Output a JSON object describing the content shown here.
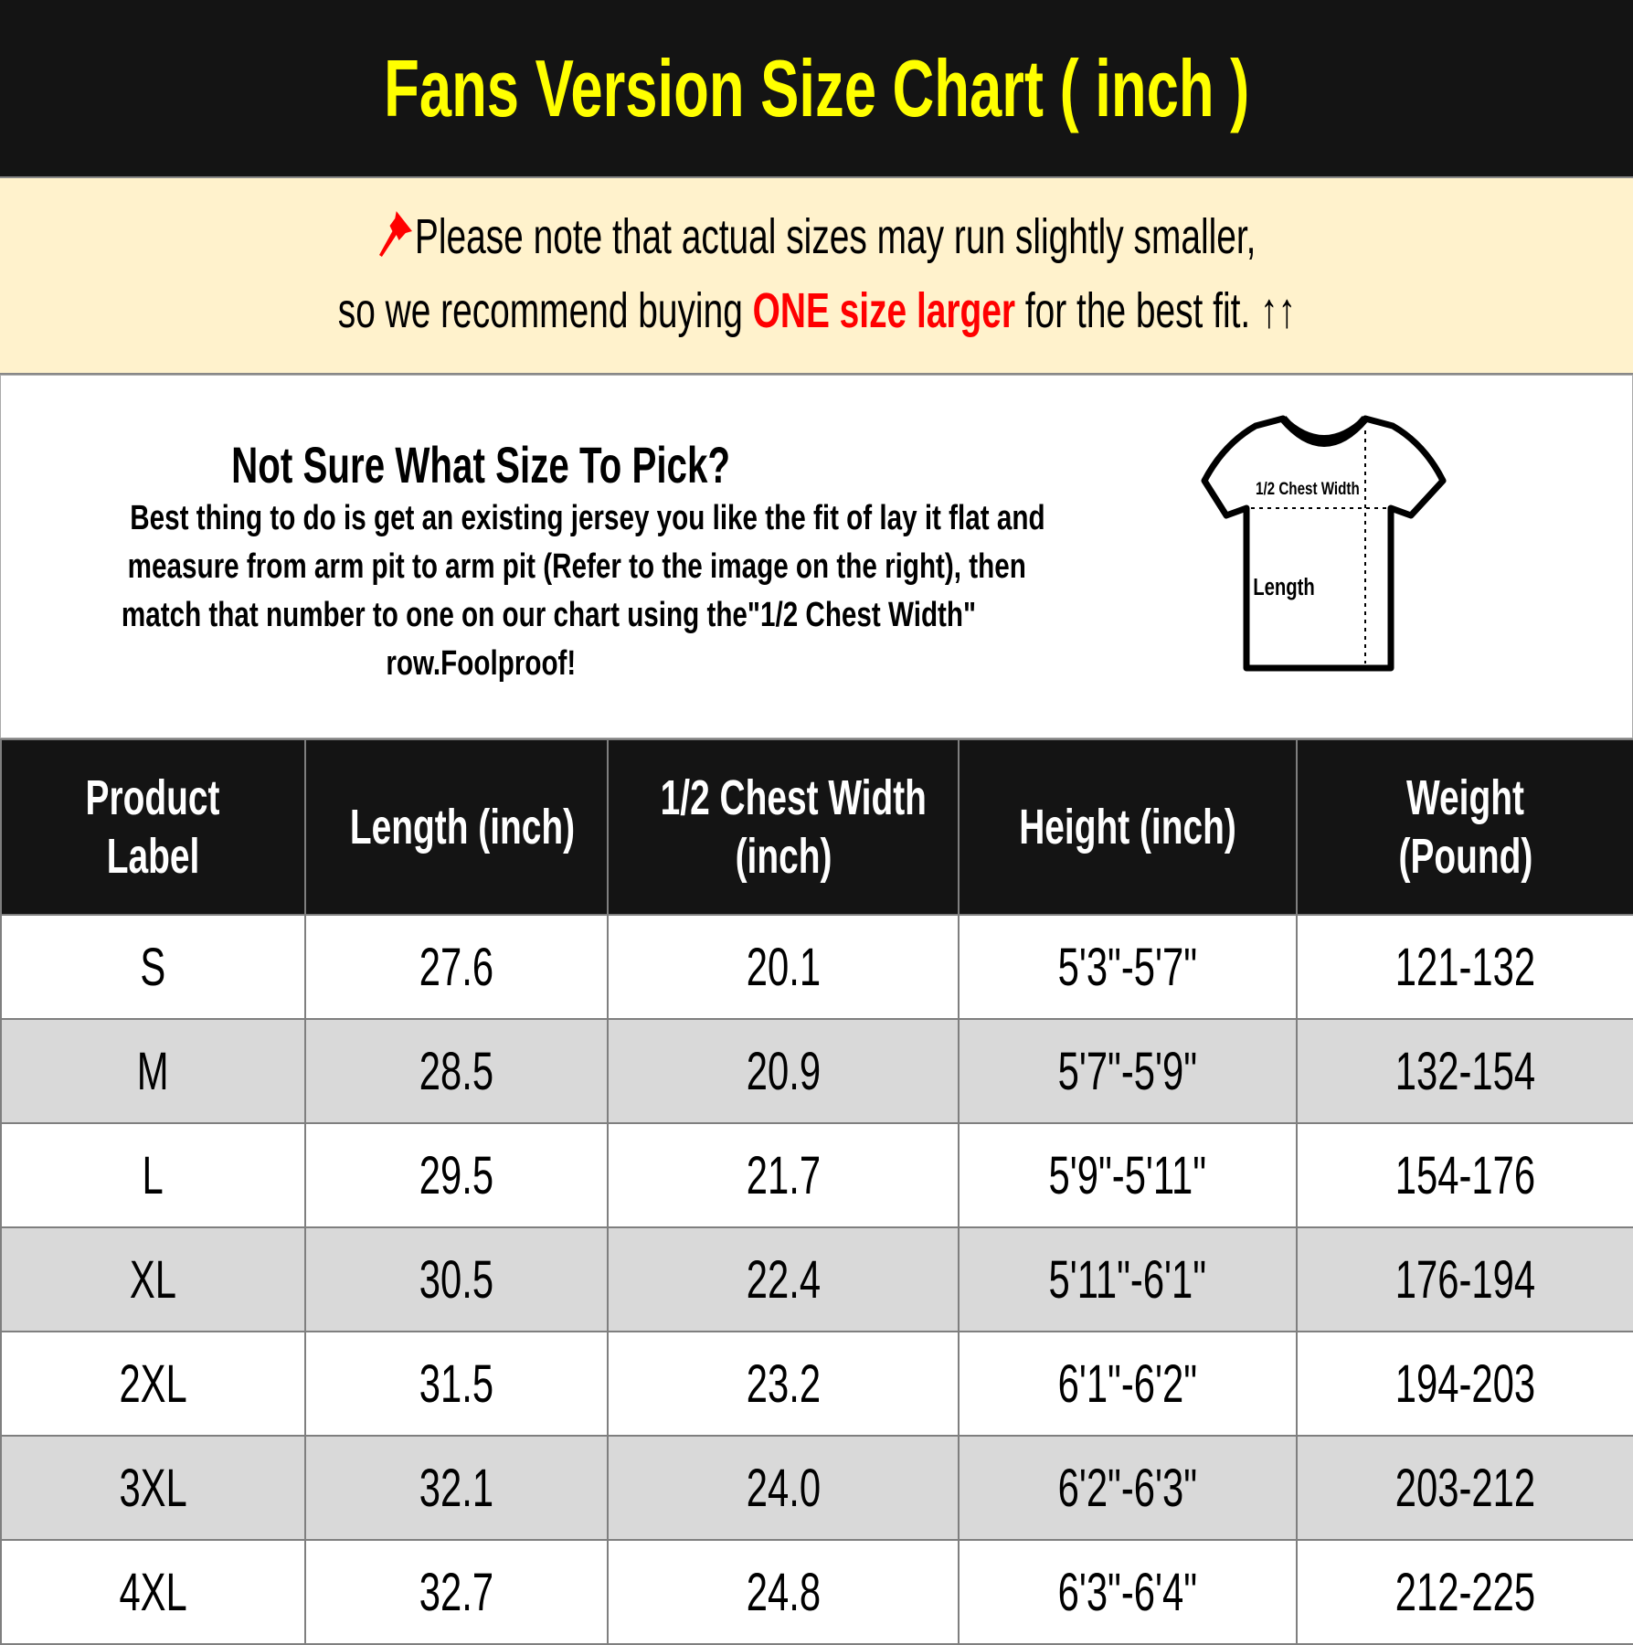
{
  "title": "Fans Version Size Chart ( inch )",
  "note": {
    "icon": "pushpin-icon",
    "line1": "Please note that actual sizes may run slightly smaller,",
    "line2_pre": "so we recommend buying ",
    "line2_highlight": "ONE size larger",
    "line2_post": " for the best fit. ↑↑",
    "highlight_color": "#ff0000",
    "background": "#fff2cc"
  },
  "info": {
    "heading": "Not Sure What Size To Pick?",
    "lines": [
      "Best thing to do is get an existing jersey you like the fit of lay it flat and",
      "measure from arm pit to arm pit (Refer to the image on the right), then",
      "match that number to one on our chart using the\"1/2 Chest Width\"",
      "row.Foolproof!"
    ],
    "diagram": {
      "chest_label": "1/2 Chest Width",
      "length_label": "Length"
    }
  },
  "table": {
    "headers": [
      [
        "Product",
        "Label"
      ],
      [
        "Length (inch)"
      ],
      [
        "1/2 Chest Width",
        "(inch)"
      ],
      [
        "Height (inch)"
      ],
      [
        "Weight",
        "(Pound)"
      ]
    ],
    "rows": [
      [
        "S",
        "27.6",
        "20.1",
        "5'3\"-5'7\"",
        "121-132"
      ],
      [
        "M",
        "28.5",
        "20.9",
        "5'7\"-5'9\"",
        "132-154"
      ],
      [
        "L",
        "29.5",
        "21.7",
        "5'9\"-5'11\"",
        "154-176"
      ],
      [
        "XL",
        "30.5",
        "22.4",
        "5'11\"-6'1\"",
        "176-194"
      ],
      [
        "2XL",
        "31.5",
        "23.2",
        "6'1\"-6'2\"",
        "194-203"
      ],
      [
        "3XL",
        "32.1",
        "24.0",
        "6'2\"-6'3\"",
        "203-212"
      ],
      [
        "4XL",
        "32.7",
        "24.8",
        "6'3\"-6'4\"",
        "212-225"
      ]
    ]
  }
}
